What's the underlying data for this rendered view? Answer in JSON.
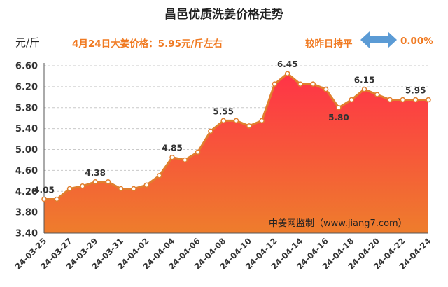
{
  "header": {
    "title": "昌邑优质洗姜价格走势",
    "unit_label": "元/斤",
    "price_text": "4月24日大姜价格：5.95元/斤左右",
    "compare_text": "较昨日持平",
    "change_pct": "0.00%"
  },
  "colors": {
    "line": "#e07f2e",
    "marker_fill": "#ffffff",
    "area_top": "#ff3347",
    "area_bottom": "#ee7d2c",
    "accent_text": "#f07a22",
    "arrow": "#5b9bd5"
  },
  "source": "中姜网监制（www.jiang7.com）",
  "chart_data": {
    "type": "area",
    "title": "昌邑优质洗姜价格走势",
    "ylabel": "元/斤",
    "ylim": [
      3.4,
      6.6
    ],
    "yticks": [
      "3.40",
      "3.80",
      "4.20",
      "4.60",
      "5.00",
      "5.40",
      "5.80",
      "6.20",
      "6.60"
    ],
    "grid": true,
    "x": [
      "24-03-25",
      "24-03-26",
      "24-03-27",
      "24-03-28",
      "24-03-29",
      "24-03-30",
      "24-03-31",
      "24-04-01",
      "24-04-02",
      "24-04-03",
      "24-04-04",
      "24-04-05",
      "24-04-06",
      "24-04-07",
      "24-04-08",
      "24-04-09",
      "24-04-10",
      "24-04-11",
      "24-04-12",
      "24-04-13",
      "24-04-14",
      "24-04-15",
      "24-04-16",
      "24-04-17",
      "24-04-18",
      "24-04-19",
      "24-04-20",
      "24-04-21",
      "24-04-22",
      "24-04-23",
      "24-04-24"
    ],
    "xtick_labels": [
      "24-03-25",
      "24-03-27",
      "24-03-29",
      "24-03-31",
      "24-04-02",
      "24-04-04",
      "24-04-06",
      "24-04-08",
      "24-04-10",
      "24-04-12",
      "24-04-14",
      "24-04-16",
      "24-04-18",
      "24-04-20",
      "24-04-22",
      "24-04-24"
    ],
    "values": [
      4.05,
      4.05,
      4.25,
      4.3,
      4.38,
      4.38,
      4.25,
      4.25,
      4.32,
      4.5,
      4.85,
      4.8,
      4.95,
      5.35,
      5.55,
      5.55,
      5.45,
      5.55,
      6.25,
      6.45,
      6.25,
      6.25,
      6.15,
      5.8,
      5.95,
      6.15,
      6.05,
      5.95,
      5.95,
      5.95,
      5.95
    ],
    "data_labels": [
      {
        "index": 0,
        "text": "4.05"
      },
      {
        "index": 4,
        "text": "4.38"
      },
      {
        "index": 10,
        "text": "4.85"
      },
      {
        "index": 14,
        "text": "5.55"
      },
      {
        "index": 19,
        "text": "6.45"
      },
      {
        "index": 23,
        "text": "5.80"
      },
      {
        "index": 25,
        "text": "6.15"
      },
      {
        "index": 29,
        "text": "5.95"
      }
    ]
  }
}
